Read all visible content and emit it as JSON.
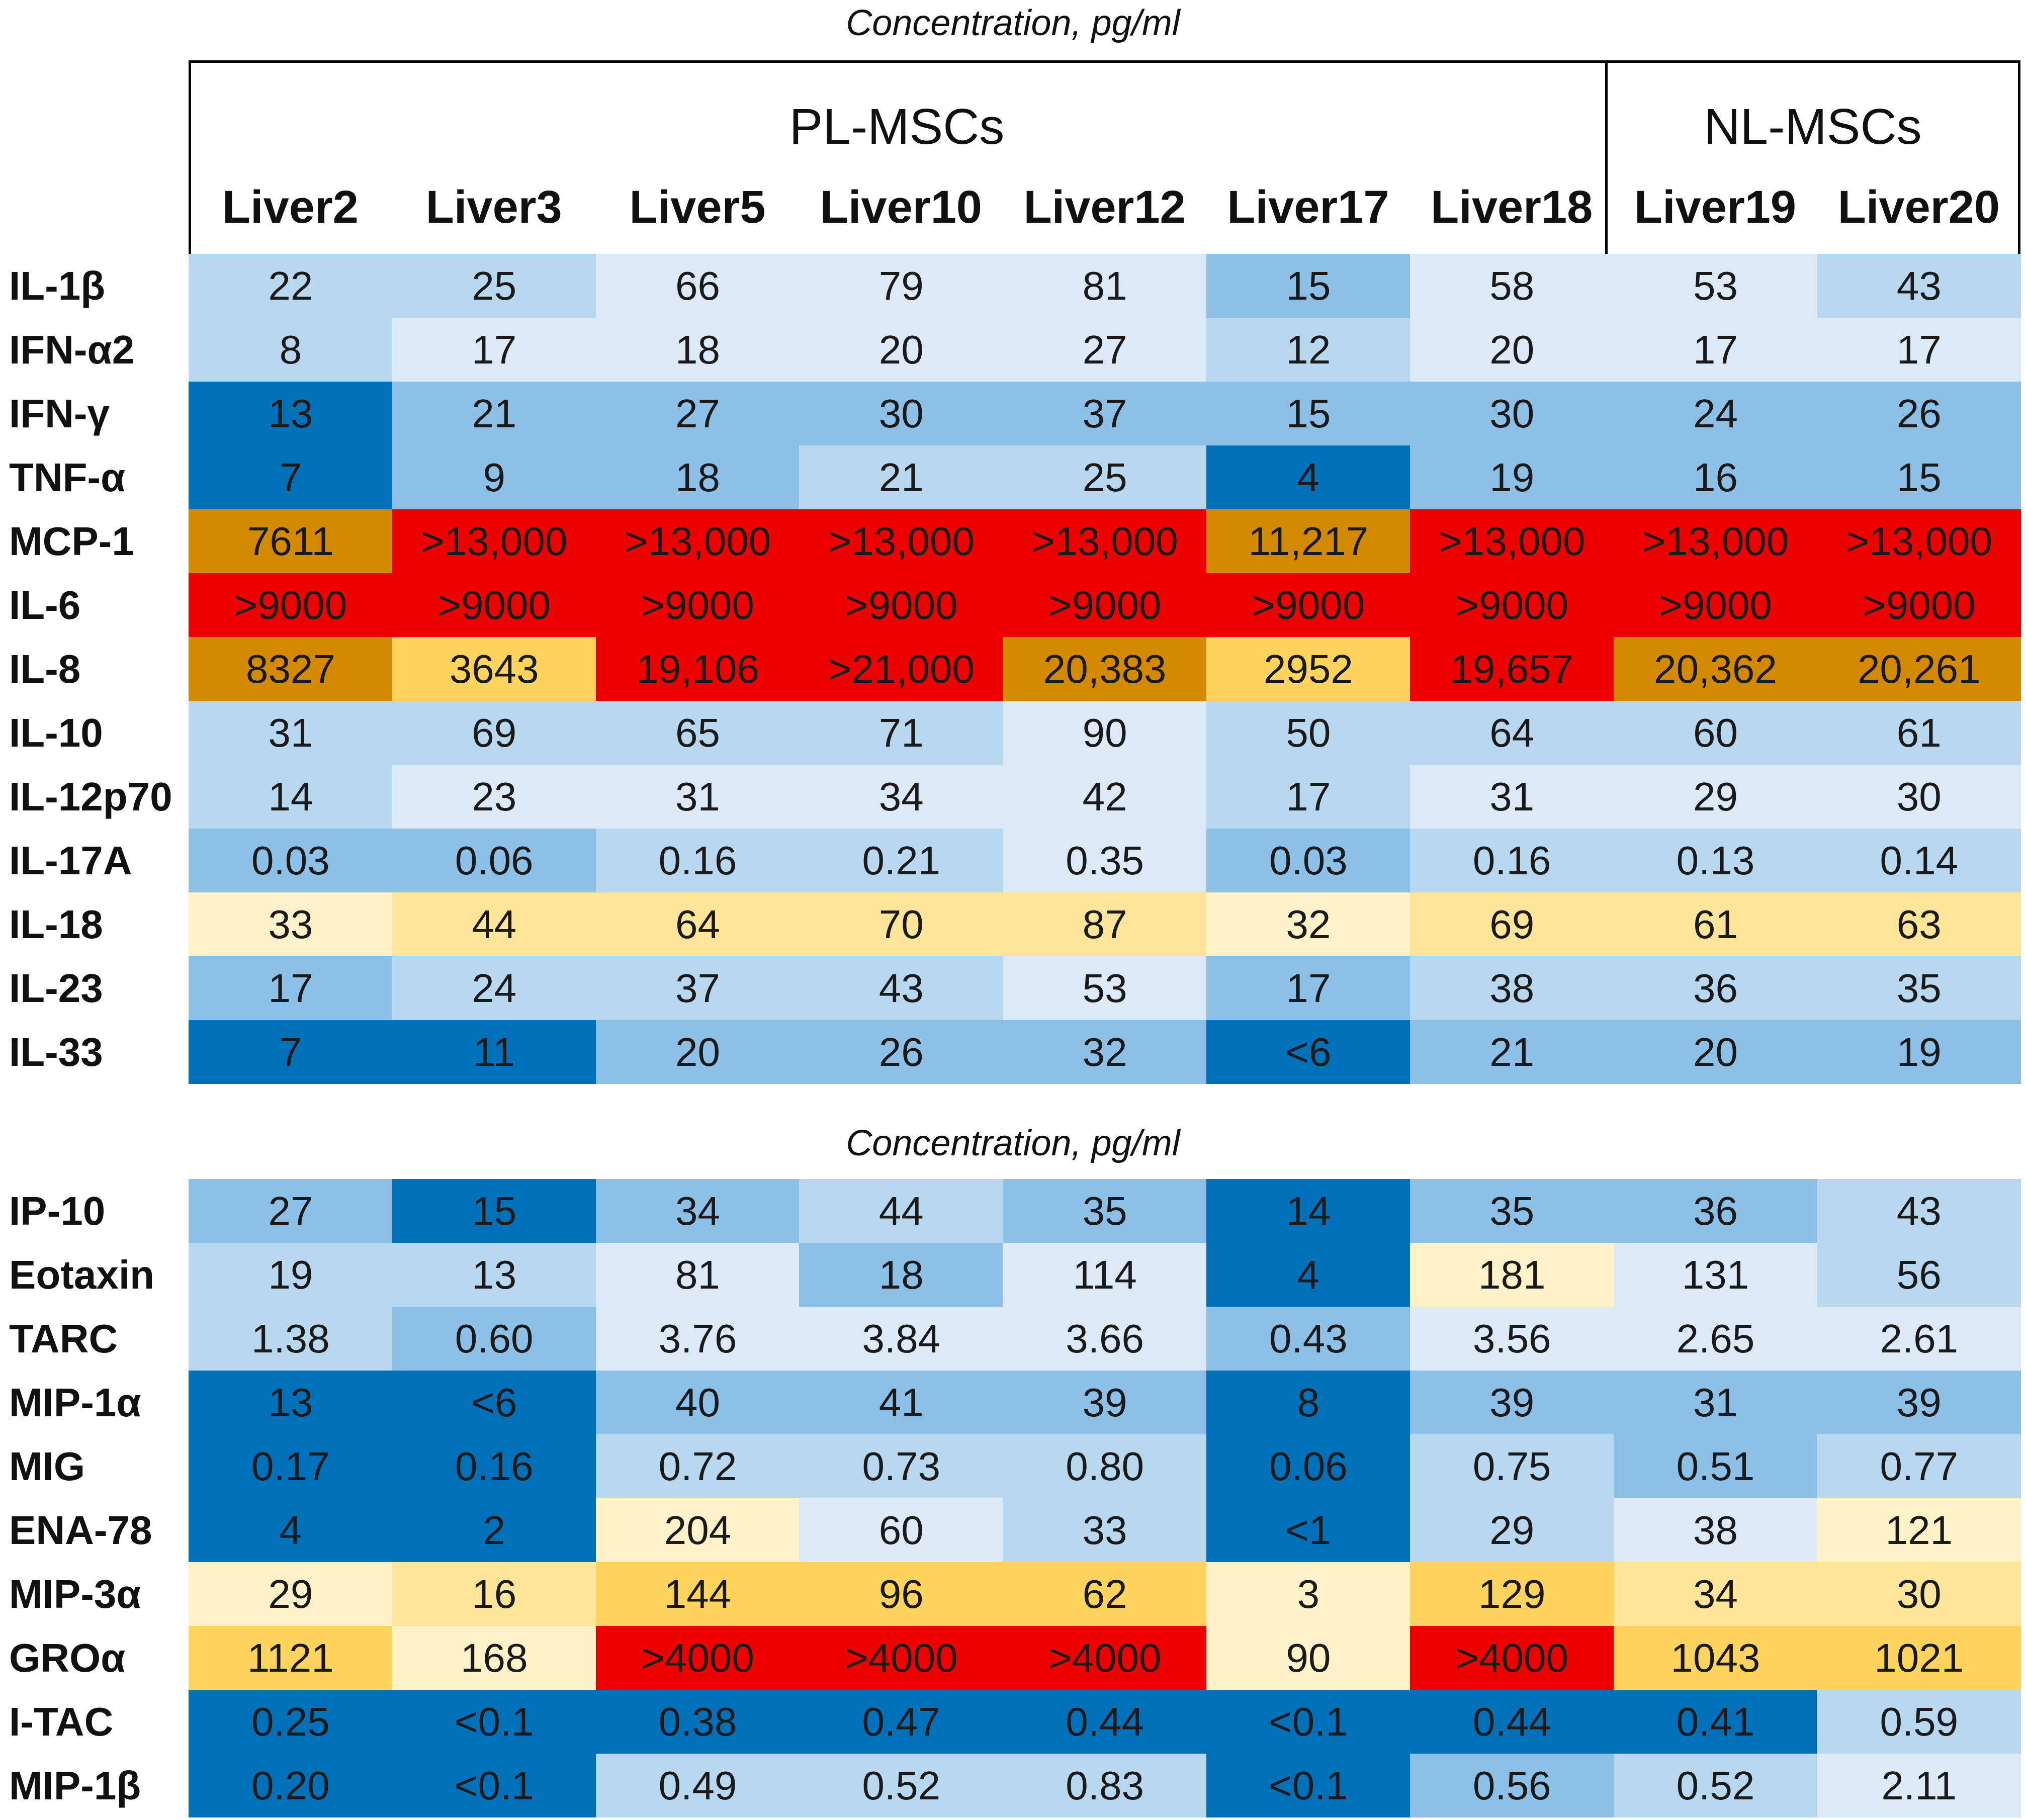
{
  "concentration_label": "Concentration, pg/ml",
  "groups": [
    {
      "name": "PL-MSCs",
      "columns": 7
    },
    {
      "name": "NL-MSCs",
      "columns": 2
    }
  ],
  "colors": {
    "dark_blue": "#0070b8",
    "mid_blue": "#8dc0e6",
    "light_blue": "#b8d8ef",
    "pale_blue": "#dbeaf6",
    "pale_yellow": "#fff1c8",
    "light_yellow": "#ffe59a",
    "yellow": "#ffd45e",
    "orange": "#d48a00",
    "red": "#ee0000"
  },
  "chart_data": {
    "type": "heatmap",
    "title": "Concentration, pg/ml",
    "columns": [
      "Liver2",
      "Liver3",
      "Liver5",
      "Liver10",
      "Liver12",
      "Liver17",
      "Liver18",
      "Liver19",
      "Liver20"
    ],
    "panels": [
      {
        "rows": [
          {
            "label": "IL-1β",
            "values": [
              "22",
              "25",
              "66",
              "79",
              "81",
              "15",
              "58",
              "53",
              "43"
            ],
            "colors": [
              "light_blue",
              "light_blue",
              "pale_blue",
              "pale_blue",
              "pale_blue",
              "mid_blue",
              "pale_blue",
              "pale_blue",
              "light_blue"
            ]
          },
          {
            "label": "IFN-α2",
            "values": [
              "8",
              "17",
              "18",
              "20",
              "27",
              "12",
              "20",
              "17",
              "17"
            ],
            "colors": [
              "light_blue",
              "pale_blue",
              "pale_blue",
              "pale_blue",
              "pale_blue",
              "light_blue",
              "pale_blue",
              "pale_blue",
              "pale_blue"
            ]
          },
          {
            "label": "IFN-γ",
            "values": [
              "13",
              "21",
              "27",
              "30",
              "37",
              "15",
              "30",
              "24",
              "26"
            ],
            "colors": [
              "dark_blue",
              "mid_blue",
              "mid_blue",
              "mid_blue",
              "mid_blue",
              "mid_blue",
              "mid_blue",
              "mid_blue",
              "mid_blue"
            ]
          },
          {
            "label": "TNF-α",
            "values": [
              "7",
              "9",
              "18",
              "21",
              "25",
              "4",
              "19",
              "16",
              "15"
            ],
            "colors": [
              "dark_blue",
              "mid_blue",
              "mid_blue",
              "light_blue",
              "light_blue",
              "dark_blue",
              "mid_blue",
              "mid_blue",
              "mid_blue"
            ]
          },
          {
            "label": "MCP-1",
            "values": [
              "7611",
              ">13,000",
              ">13,000",
              ">13,000",
              ">13,000",
              "11,217",
              ">13,000",
              ">13,000",
              ">13,000"
            ],
            "colors": [
              "orange",
              "red",
              "red",
              "red",
              "red",
              "orange",
              "red",
              "red",
              "red"
            ]
          },
          {
            "label": "IL-6",
            "values": [
              ">9000",
              ">9000",
              ">9000",
              ">9000",
              ">9000",
              ">9000",
              ">9000",
              ">9000",
              ">9000"
            ],
            "colors": [
              "red",
              "red",
              "red",
              "red",
              "red",
              "red",
              "red",
              "red",
              "red"
            ]
          },
          {
            "label": "IL-8",
            "values": [
              "8327",
              "3643",
              "19,106",
              ">21,000",
              "20,383",
              "2952",
              "19,657",
              "20,362",
              "20,261"
            ],
            "colors": [
              "orange",
              "yellow",
              "red",
              "red",
              "orange",
              "yellow",
              "red",
              "orange",
              "orange"
            ]
          },
          {
            "label": "IL-10",
            "values": [
              "31",
              "69",
              "65",
              "71",
              "90",
              "50",
              "64",
              "60",
              "61"
            ],
            "colors": [
              "light_blue",
              "light_blue",
              "light_blue",
              "light_blue",
              "pale_blue",
              "light_blue",
              "light_blue",
              "light_blue",
              "light_blue"
            ]
          },
          {
            "label": "IL-12p70",
            "values": [
              "14",
              "23",
              "31",
              "34",
              "42",
              "17",
              "31",
              "29",
              "30"
            ],
            "colors": [
              "light_blue",
              "pale_blue",
              "pale_blue",
              "pale_blue",
              "pale_blue",
              "light_blue",
              "pale_blue",
              "pale_blue",
              "pale_blue"
            ]
          },
          {
            "label": "IL-17A",
            "values": [
              "0.03",
              "0.06",
              "0.16",
              "0.21",
              "0.35",
              "0.03",
              "0.16",
              "0.13",
              "0.14"
            ],
            "colors": [
              "mid_blue",
              "mid_blue",
              "light_blue",
              "light_blue",
              "pale_blue",
              "mid_blue",
              "light_blue",
              "light_blue",
              "light_blue"
            ]
          },
          {
            "label": "IL-18",
            "values": [
              "33",
              "44",
              "64",
              "70",
              "87",
              "32",
              "69",
              "61",
              "63"
            ],
            "colors": [
              "pale_yellow",
              "light_yellow",
              "light_yellow",
              "light_yellow",
              "light_yellow",
              "pale_yellow",
              "light_yellow",
              "light_yellow",
              "light_yellow"
            ]
          },
          {
            "label": "IL-23",
            "values": [
              "17",
              "24",
              "37",
              "43",
              "53",
              "17",
              "38",
              "36",
              "35"
            ],
            "colors": [
              "mid_blue",
              "light_blue",
              "light_blue",
              "light_blue",
              "pale_blue",
              "mid_blue",
              "light_blue",
              "light_blue",
              "light_blue"
            ]
          },
          {
            "label": "IL-33",
            "values": [
              "7",
              "11",
              "20",
              "26",
              "32",
              "<6",
              "21",
              "20",
              "19"
            ],
            "colors": [
              "dark_blue",
              "dark_blue",
              "mid_blue",
              "mid_blue",
              "mid_blue",
              "dark_blue",
              "mid_blue",
              "mid_blue",
              "mid_blue"
            ]
          }
        ]
      },
      {
        "rows": [
          {
            "label": "IP-10",
            "values": [
              "27",
              "15",
              "34",
              "44",
              "35",
              "14",
              "35",
              "36",
              "43"
            ],
            "colors": [
              "mid_blue",
              "dark_blue",
              "mid_blue",
              "light_blue",
              "mid_blue",
              "dark_blue",
              "mid_blue",
              "mid_blue",
              "light_blue"
            ]
          },
          {
            "label": "Eotaxin",
            "values": [
              "19",
              "13",
              "81",
              "18",
              "114",
              "4",
              "181",
              "131",
              "56"
            ],
            "colors": [
              "light_blue",
              "light_blue",
              "pale_blue",
              "mid_blue",
              "pale_blue",
              "dark_blue",
              "pale_yellow",
              "pale_blue",
              "light_blue"
            ]
          },
          {
            "label": "TARC",
            "values": [
              "1.38",
              "0.60",
              "3.76",
              "3.84",
              "3.66",
              "0.43",
              "3.56",
              "2.65",
              "2.61"
            ],
            "colors": [
              "light_blue",
              "mid_blue",
              "pale_blue",
              "pale_blue",
              "pale_blue",
              "mid_blue",
              "pale_blue",
              "pale_blue",
              "pale_blue"
            ]
          },
          {
            "label": "MIP-1α",
            "values": [
              "13",
              "<6",
              "40",
              "41",
              "39",
              "8",
              "39",
              "31",
              "39"
            ],
            "colors": [
              "dark_blue",
              "dark_blue",
              "mid_blue",
              "mid_blue",
              "mid_blue",
              "dark_blue",
              "mid_blue",
              "mid_blue",
              "mid_blue"
            ]
          },
          {
            "label": "MIG",
            "values": [
              "0.17",
              "0.16",
              "0.72",
              "0.73",
              "0.80",
              "0.06",
              "0.75",
              "0.51",
              "0.77"
            ],
            "colors": [
              "dark_blue",
              "dark_blue",
              "light_blue",
              "light_blue",
              "light_blue",
              "dark_blue",
              "light_blue",
              "mid_blue",
              "light_blue"
            ]
          },
          {
            "label": "ENA-78",
            "values": [
              "4",
              "2",
              "204",
              "60",
              "33",
              "<1",
              "29",
              "38",
              "121"
            ],
            "colors": [
              "dark_blue",
              "dark_blue",
              "pale_yellow",
              "pale_blue",
              "light_blue",
              "dark_blue",
              "light_blue",
              "pale_blue",
              "pale_yellow"
            ]
          },
          {
            "label": "MIP-3α",
            "values": [
              "29",
              "16",
              "144",
              "96",
              "62",
              "3",
              "129",
              "34",
              "30"
            ],
            "colors": [
              "pale_yellow",
              "light_yellow",
              "yellow",
              "yellow",
              "yellow",
              "pale_yellow",
              "yellow",
              "light_yellow",
              "light_yellow"
            ]
          },
          {
            "label": "GROα",
            "values": [
              "1121",
              "168",
              ">4000",
              ">4000",
              ">4000",
              "90",
              ">4000",
              "1043",
              "1021"
            ],
            "colors": [
              "yellow",
              "pale_yellow",
              "red",
              "red",
              "red",
              "pale_yellow",
              "red",
              "yellow",
              "yellow"
            ]
          },
          {
            "label": "I-TAC",
            "values": [
              "0.25",
              "<0.1",
              "0.38",
              "0.47",
              "0.44",
              "<0.1",
              "0.44",
              "0.41",
              "0.59"
            ],
            "colors": [
              "dark_blue",
              "dark_blue",
              "dark_blue",
              "dark_blue",
              "dark_blue",
              "dark_blue",
              "dark_blue",
              "dark_blue",
              "light_blue"
            ]
          },
          {
            "label": "MIP-1β",
            "values": [
              "0.20",
              "<0.1",
              "0.49",
              "0.52",
              "0.83",
              "<0.1",
              "0.56",
              "0.52",
              "2.11"
            ],
            "colors": [
              "dark_blue",
              "dark_blue",
              "light_blue",
              "light_blue",
              "light_blue",
              "dark_blue",
              "mid_blue",
              "light_blue",
              "pale_blue"
            ]
          }
        ]
      }
    ]
  }
}
